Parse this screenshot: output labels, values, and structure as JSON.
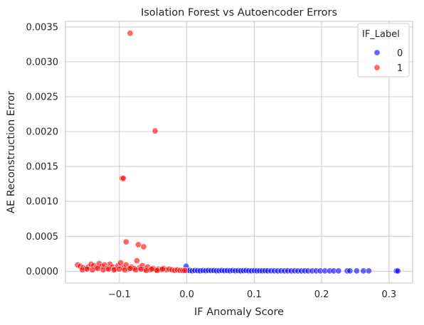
{
  "chart_data": {
    "type": "scatter",
    "title": "Isolation Forest vs Autoencoder Errors",
    "xlabel": "IF Anomaly Score",
    "ylabel": "AE Reconstruction Error",
    "xlim": [
      -0.18,
      0.335
    ],
    "ylim": [
      -0.00017,
      0.00358
    ],
    "x_ticks": [
      -0.1,
      0.0,
      0.1,
      0.2,
      0.3
    ],
    "x_tick_labels": [
      "−0.1",
      "0.0",
      "0.1",
      "0.2",
      "0.3"
    ],
    "y_ticks": [
      0,
      0.0005,
      0.001,
      0.0015,
      0.002,
      0.0025,
      0.003,
      0.0035
    ],
    "y_tick_labels": [
      "0.0000",
      "0.0005",
      "0.0010",
      "0.0015",
      "0.0020",
      "0.0025",
      "0.0030",
      "0.0035"
    ],
    "grid": true,
    "legend": {
      "title": "IF_Label",
      "placement": "top-right",
      "entries": [
        {
          "label": "0",
          "color": "#0000ff"
        },
        {
          "label": "1",
          "color": "#ff0000"
        }
      ]
    },
    "series": [
      {
        "name": "0",
        "color": "#0000ff",
        "points": [
          [
            -0.001,
            7e-05
          ],
          [
            0.0,
            1e-05
          ],
          [
            0.004,
            1e-05
          ],
          [
            0.008,
            5e-06
          ],
          [
            0.012,
            1e-05
          ],
          [
            0.016,
            8e-06
          ],
          [
            0.02,
            5e-06
          ],
          [
            0.024,
            1e-05
          ],
          [
            0.028,
            6e-06
          ],
          [
            0.032,
            1e-05
          ],
          [
            0.036,
            8e-06
          ],
          [
            0.04,
            1e-05
          ],
          [
            0.044,
            5e-06
          ],
          [
            0.048,
            7e-06
          ],
          [
            0.052,
            1e-05
          ],
          [
            0.056,
            6e-06
          ],
          [
            0.06,
            8e-06
          ],
          [
            0.064,
            5e-06
          ],
          [
            0.068,
            1e-05
          ],
          [
            0.072,
            6e-06
          ],
          [
            0.076,
            8e-06
          ],
          [
            0.08,
            5e-06
          ],
          [
            0.084,
            7e-06
          ],
          [
            0.088,
            1e-05
          ],
          [
            0.092,
            6e-06
          ],
          [
            0.096,
            5e-06
          ],
          [
            0.1,
            8e-06
          ],
          [
            0.104,
            5e-06
          ],
          [
            0.108,
            6e-06
          ],
          [
            0.112,
            5e-06
          ],
          [
            0.116,
            7e-06
          ],
          [
            0.12,
            5e-06
          ],
          [
            0.125,
            6e-06
          ],
          [
            0.13,
            5e-06
          ],
          [
            0.135,
            4e-06
          ],
          [
            0.14,
            5e-06
          ],
          [
            0.145,
            4e-06
          ],
          [
            0.15,
            5e-06
          ],
          [
            0.155,
            4e-06
          ],
          [
            0.16,
            5e-06
          ],
          [
            0.165,
            4e-06
          ],
          [
            0.17,
            4e-06
          ],
          [
            0.175,
            5e-06
          ],
          [
            0.18,
            4e-06
          ],
          [
            0.186,
            4e-06
          ],
          [
            0.192,
            4e-06
          ],
          [
            0.198,
            4e-06
          ],
          [
            0.205,
            4e-06
          ],
          [
            0.212,
            4e-06
          ],
          [
            0.218,
            4e-06
          ],
          [
            0.225,
            4e-06
          ],
          [
            0.238,
            4e-06
          ],
          [
            0.242,
            4e-06
          ],
          [
            0.252,
            4e-06
          ],
          [
            0.262,
            4e-06
          ],
          [
            0.27,
            4e-06
          ],
          [
            0.311,
            3e-06
          ],
          [
            0.313,
            3e-06
          ]
        ]
      },
      {
        "name": "1",
        "color": "#ff0000",
        "points": [
          [
            -0.084,
            0.00341
          ],
          [
            -0.047,
            0.00201
          ],
          [
            -0.096,
            0.00133
          ],
          [
            -0.094,
            0.00133
          ],
          [
            -0.09,
            0.00042
          ],
          [
            -0.072,
            0.00038
          ],
          [
            -0.064,
            0.00035
          ],
          [
            -0.162,
            9e-05
          ],
          [
            -0.158,
            7e-05
          ],
          [
            -0.154,
            5e-05
          ],
          [
            -0.15,
            4e-05
          ],
          [
            -0.146,
            6e-05
          ],
          [
            -0.142,
            0.0001
          ],
          [
            -0.138,
            8e-05
          ],
          [
            -0.134,
            5e-05
          ],
          [
            -0.13,
            0.00011
          ],
          [
            -0.126,
            7e-05
          ],
          [
            -0.122,
            9e-05
          ],
          [
            -0.118,
            4e-05
          ],
          [
            -0.114,
            0.0001
          ],
          [
            -0.11,
            6e-05
          ],
          [
            -0.106,
            3e-05
          ],
          [
            -0.102,
            8e-05
          ],
          [
            -0.098,
            0.00012
          ],
          [
            -0.094,
            5e-05
          ],
          [
            -0.09,
            9e-05
          ],
          [
            -0.086,
            3e-05
          ],
          [
            -0.082,
            6e-05
          ],
          [
            -0.078,
            4e-05
          ],
          [
            -0.074,
            0.00015
          ],
          [
            -0.07,
            5e-05
          ],
          [
            -0.066,
            8e-05
          ],
          [
            -0.062,
            3e-05
          ],
          [
            -0.058,
            6e-05
          ],
          [
            -0.054,
            2e-05
          ],
          [
            -0.05,
            4e-05
          ],
          [
            -0.046,
            2e-05
          ],
          [
            -0.042,
            3e-05
          ],
          [
            -0.038,
            2e-05
          ],
          [
            -0.034,
            4e-05
          ],
          [
            -0.03,
            2e-05
          ],
          [
            -0.026,
            3e-05
          ],
          [
            -0.022,
            2e-05
          ],
          [
            -0.018,
            1e-05
          ],
          [
            -0.014,
            2e-05
          ],
          [
            -0.01,
            1e-05
          ],
          [
            -0.006,
            1e-05
          ],
          [
            -0.003,
            1e-05
          ],
          [
            -0.155,
            2e-05
          ],
          [
            -0.148,
            3e-05
          ],
          [
            -0.14,
            2e-05
          ],
          [
            -0.132,
            4e-05
          ],
          [
            -0.124,
            2e-05
          ],
          [
            -0.116,
            3e-05
          ],
          [
            -0.108,
            2e-05
          ],
          [
            -0.1,
            3e-05
          ],
          [
            -0.092,
            2e-05
          ],
          [
            -0.084,
            4e-05
          ],
          [
            -0.076,
            2e-05
          ],
          [
            -0.068,
            3e-05
          ],
          [
            -0.06,
            1e-05
          ],
          [
            -0.052,
            3e-05
          ],
          [
            -0.044,
            1e-05
          ],
          [
            -0.036,
            3e-05
          ]
        ]
      }
    ]
  }
}
